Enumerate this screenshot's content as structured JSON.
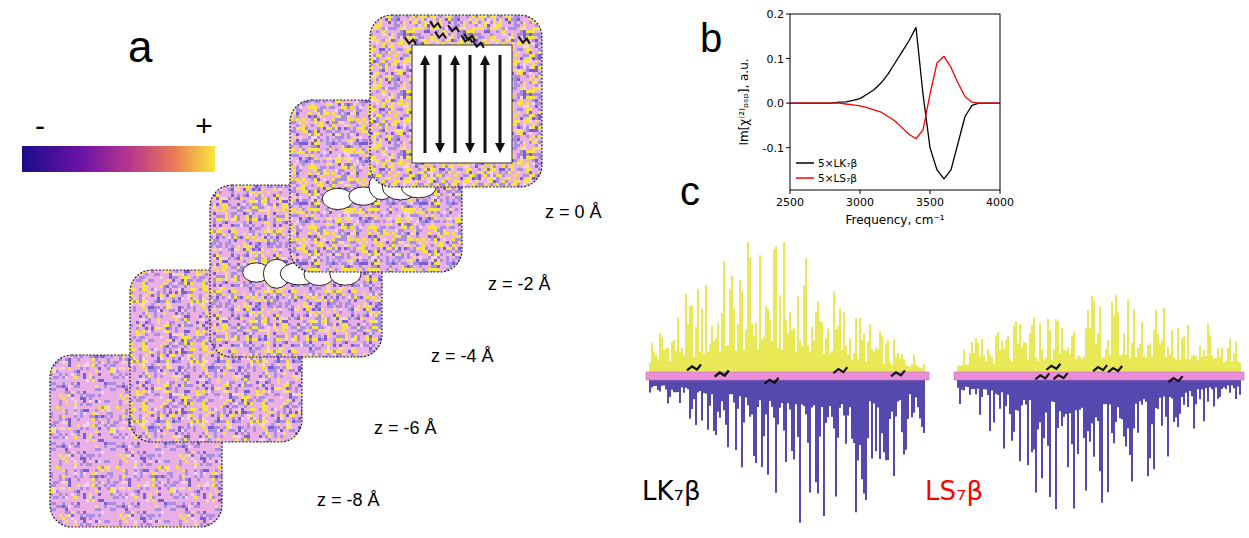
{
  "chart_data": {
    "type": "line",
    "xlabel": "Frequency, cm⁻¹",
    "ylabel": "Im[χ⁽²⁾ₚₛₚ], a.u.",
    "x": [
      2500,
      2550,
      2600,
      2650,
      2700,
      2750,
      2800,
      2850,
      2900,
      2950,
      3000,
      3050,
      3100,
      3150,
      3200,
      3250,
      3300,
      3350,
      3400,
      3450,
      3500,
      3550,
      3600,
      3650,
      3700,
      3750,
      3800,
      3850,
      3900,
      3950,
      4000
    ],
    "series": [
      {
        "name": "5×LK₇β",
        "color": "#000000",
        "values": [
          0,
          0,
          0,
          0,
          0,
          0,
          0,
          0.002,
          0.003,
          0.006,
          0.01,
          0.02,
          0.03,
          0.045,
          0.065,
          0.09,
          0.115,
          0.14,
          0.17,
          0.02,
          -0.1,
          -0.15,
          -0.17,
          -0.15,
          -0.09,
          -0.03,
          -0.005,
          0,
          0,
          0,
          0
        ]
      },
      {
        "name": "5×LS₇β",
        "color": "#ff0000",
        "values": [
          0,
          0,
          0,
          0,
          0,
          0,
          0,
          0,
          -0.002,
          -0.004,
          -0.006,
          -0.01,
          -0.015,
          -0.02,
          -0.03,
          -0.04,
          -0.055,
          -0.07,
          -0.08,
          -0.06,
          0.02,
          0.09,
          0.105,
          0.08,
          0.045,
          0.015,
          0.002,
          0,
          0,
          0,
          0
        ]
      }
    ],
    "xlim": [
      2500,
      4000
    ],
    "xticks": [
      2500,
      3000,
      3500,
      4000
    ],
    "ylim": [
      -0.195,
      0.2
    ],
    "yticks": [
      -0.1,
      {
        "value": 0,
        "label": "0.0"
      },
      0.1,
      0.2
    ],
    "legend": "lower left"
  },
  "panel_labels": [
    "a",
    "b",
    "c"
  ],
  "panel_a": {
    "colorbar": {
      "low_label": "-",
      "high_label": "+"
    },
    "slices": [
      {
        "z": 0,
        "label": "z = 0 Å"
      },
      {
        "z": -2,
        "label": "z = -2 Å"
      },
      {
        "z": -4,
        "label": "z = -4 Å"
      },
      {
        "z": -6,
        "label": "z = -6 Å"
      },
      {
        "z": -8,
        "label": "z = -8 Å"
      }
    ]
  },
  "panel_c": {
    "structures": [
      {
        "label": "LK₇β",
        "color": "#000000"
      },
      {
        "label": "LS₇β",
        "color": "#ff0000"
      }
    ]
  }
}
